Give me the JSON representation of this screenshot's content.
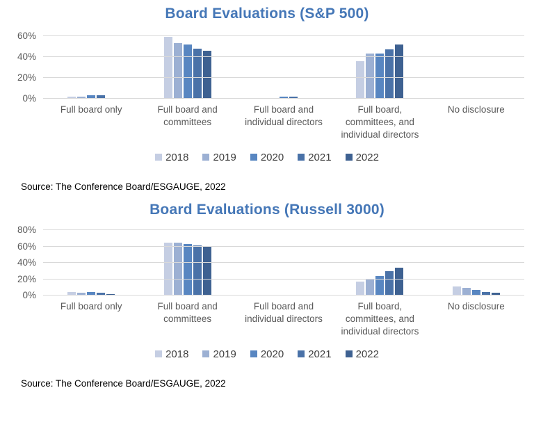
{
  "colors": {
    "series": [
      "#c5cee3",
      "#9cb0d3",
      "#5886c1",
      "#4a72a8",
      "#3e6191"
    ],
    "title": "#4577b7",
    "axis_text": "#595959",
    "gridline": "#d9d9d9",
    "legend_text": "#404040",
    "source_text": "#000000"
  },
  "chart_data": [
    {
      "type": "bar",
      "title": "Board Evaluations (S&P 500)",
      "categories": [
        "Full board only",
        "Full board and committees",
        "Full board and individual directors",
        "Full board, committees, and individual directors",
        "No disclosure"
      ],
      "series": [
        {
          "name": "2018",
          "values": [
            2,
            59,
            1,
            36,
            1
          ]
        },
        {
          "name": "2019",
          "values": [
            2,
            53,
            1,
            43,
            1
          ]
        },
        {
          "name": "2020",
          "values": [
            3,
            52,
            2,
            43,
            0
          ]
        },
        {
          "name": "2021",
          "values": [
            3,
            48,
            2,
            47,
            0
          ]
        },
        {
          "name": "2022",
          "values": [
            1,
            46,
            1,
            52,
            1
          ]
        }
      ],
      "unit": "%",
      "yticks": [
        0,
        20,
        40,
        60
      ],
      "ylim": [
        0,
        65
      ],
      "grid": true,
      "legend_position": "bottom",
      "source": "Source: The Conference Board/ESGAUGE, 2022"
    },
    {
      "type": "bar",
      "title": "Board Evaluations (Russell 3000)",
      "categories": [
        "Full board only",
        "Full board and committees",
        "Full board and individual directors",
        "Full board, committees, and individual directors",
        "No disclosure"
      ],
      "series": [
        {
          "name": "2018",
          "values": [
            4,
            65,
            1,
            17,
            11
          ]
        },
        {
          "name": "2019",
          "values": [
            3,
            65,
            1,
            20,
            9
          ]
        },
        {
          "name": "2020",
          "values": [
            4,
            63,
            1,
            24,
            7
          ]
        },
        {
          "name": "2021",
          "values": [
            3,
            61,
            1,
            30,
            4
          ]
        },
        {
          "name": "2022",
          "values": [
            2,
            60,
            1,
            34,
            3
          ]
        }
      ],
      "unit": "%",
      "yticks": [
        0,
        20,
        40,
        60,
        80
      ],
      "ylim": [
        0,
        86
      ],
      "grid": true,
      "legend_position": "bottom",
      "source": "Source: The Conference Board/ESGAUGE, 2022"
    }
  ]
}
